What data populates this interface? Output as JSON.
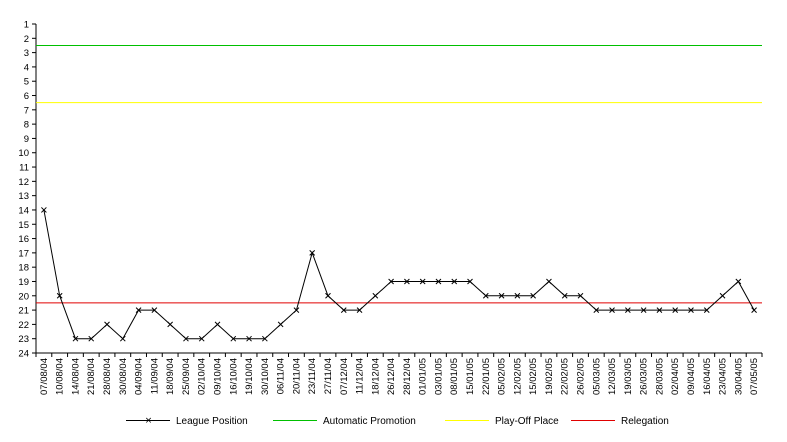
{
  "chart_data": {
    "type": "line",
    "title": "",
    "xlabel": "",
    "ylabel": "",
    "ylim": [
      1,
      24
    ],
    "y_inverted": true,
    "y_ticks": [
      "1",
      "2",
      "3",
      "4",
      "5",
      "6",
      "7",
      "8",
      "9",
      "10",
      "11",
      "12",
      "13",
      "14",
      "15",
      "16",
      "17",
      "18",
      "19",
      "20",
      "21",
      "22",
      "23",
      "24"
    ],
    "categories": [
      "07/08/04",
      "10/08/04",
      "14/08/04",
      "21/08/04",
      "28/08/04",
      "30/08/04",
      "04/09/04",
      "11/09/04",
      "18/09/04",
      "25/09/04",
      "02/10/04",
      "09/10/04",
      "16/10/04",
      "19/10/04",
      "30/10/04",
      "06/11/04",
      "20/11/04",
      "23/11/04",
      "27/11/04",
      "07/12/04",
      "11/12/04",
      "18/12/04",
      "26/12/04",
      "28/12/04",
      "01/01/05",
      "03/01/05",
      "08/01/05",
      "15/01/05",
      "22/01/05",
      "05/02/05",
      "12/02/05",
      "15/02/05",
      "19/02/05",
      "22/02/05",
      "26/02/05",
      "05/03/05",
      "12/03/05",
      "19/03/05",
      "26/03/05",
      "28/03/05",
      "02/04/05",
      "09/04/05",
      "16/04/05",
      "23/04/05",
      "30/04/05",
      "07/05/05"
    ],
    "series": [
      {
        "name": "League Position",
        "color": "#000000",
        "marker": "x",
        "values": [
          14,
          20,
          23,
          23,
          22,
          23,
          21,
          21,
          22,
          23,
          23,
          22,
          23,
          23,
          23,
          22,
          21,
          17,
          20,
          21,
          21,
          20,
          19,
          19,
          19,
          19,
          19,
          19,
          20,
          20,
          20,
          20,
          19,
          20,
          20,
          21,
          21,
          21,
          21,
          21,
          21,
          21,
          21,
          20,
          19,
          21
        ]
      }
    ],
    "reference_lines": [
      {
        "name": "Automatic Promotion",
        "value": 2.5,
        "color": "#00c000"
      },
      {
        "name": "Play-Off Place",
        "value": 6.5,
        "color": "#ffff00"
      },
      {
        "name": "Relegation",
        "value": 20.5,
        "color": "#e00000"
      }
    ],
    "grid": false,
    "legend_position": "bottom"
  }
}
